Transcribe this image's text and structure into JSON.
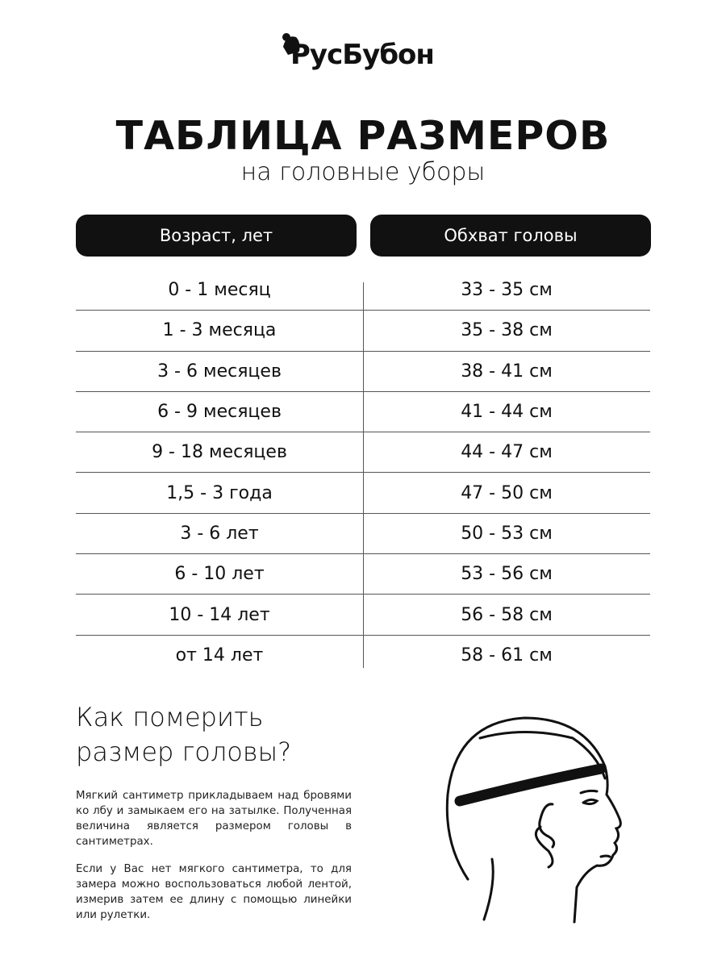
{
  "brand": {
    "logo_text": "РусБубон"
  },
  "header": {
    "title": "ТАБЛИЦА РАЗМЕРОВ",
    "subtitle": "на головные уборы"
  },
  "table": {
    "columns": [
      "Возраст, лет",
      "Обхват головы"
    ],
    "rows": [
      [
        "0 - 1 месяц",
        "33 - 35 см"
      ],
      [
        "1 - 3 месяца",
        "35 - 38 см"
      ],
      [
        "3 - 6 месяцев",
        "38 - 41 см"
      ],
      [
        "6 - 9 месяцев",
        "41 - 44 см"
      ],
      [
        "9 - 18 месяцев",
        "44 - 47 см"
      ],
      [
        "1,5 - 3 года",
        "47 - 50 см"
      ],
      [
        "3 - 6 лет",
        "50 - 53 см"
      ],
      [
        "6 - 10 лет",
        "53 - 56 см"
      ],
      [
        "10 - 14 лет",
        "56 - 58 см"
      ],
      [
        "от 14 лет",
        "58 - 61 см"
      ]
    ]
  },
  "howto": {
    "title_line1": "Как померить",
    "title_line2": "размер головы?",
    "paragraph1": "Мягкий сантиметр прикладываем над бровями ко лбу и замыкаем его на затылке. Полученная величина является размером головы в сантиметрах.",
    "paragraph2": "Если у Вас нет мягкого сантиметра, то для замера можно воспользоваться любой лентой, измерив затем ее длину с помощью линейки или рулетки."
  },
  "illustration": {
    "icon": "head-measuring-tape-icon"
  }
}
